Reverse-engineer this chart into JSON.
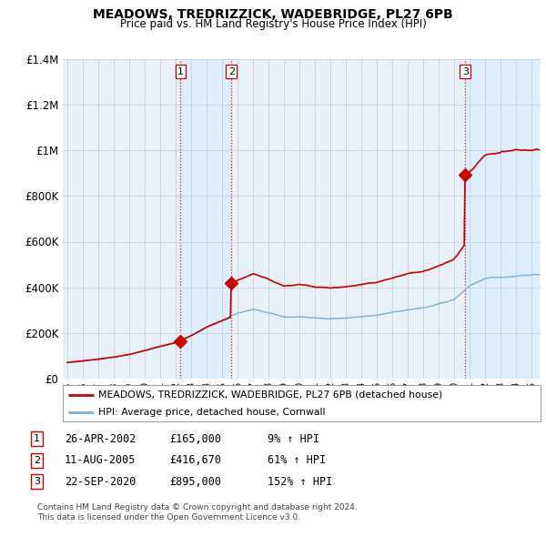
{
  "title": "MEADOWS, TREDRIZZICK, WADEBRIDGE, PL27 6PB",
  "subtitle": "Price paid vs. HM Land Registry's House Price Index (HPI)",
  "ylim": [
    0,
    1400000
  ],
  "yticks": [
    0,
    200000,
    400000,
    600000,
    800000,
    1000000,
    1200000,
    1400000
  ],
  "ytick_labels": [
    "£0",
    "£200K",
    "£400K",
    "£600K",
    "£800K",
    "£1M",
    "£1.2M",
    "£1.4M"
  ],
  "sale_color": "#cc0000",
  "hpi_color": "#7bafd4",
  "transaction_years": [
    2002.32,
    2005.61,
    2020.73
  ],
  "transaction_prices": [
    165000,
    416670,
    895000
  ],
  "transaction_labels": [
    "1",
    "2",
    "3"
  ],
  "vline_color": "#cc0000",
  "shade_color": "#ddeeff",
  "legend_sale_label": "MEADOWS, TREDRIZZICK, WADEBRIDGE, PL27 6PB (detached house)",
  "legend_hpi_label": "HPI: Average price, detached house, Cornwall",
  "table_rows": [
    [
      "1",
      "26-APR-2002",
      "£165,000",
      "9% ↑ HPI"
    ],
    [
      "2",
      "11-AUG-2005",
      "£416,670",
      "61% ↑ HPI"
    ],
    [
      "3",
      "22-SEP-2020",
      "£895,000",
      "152% ↑ HPI"
    ]
  ],
  "footnote": "Contains HM Land Registry data © Crown copyright and database right 2024.\nThis data is licensed under the Open Government Licence v3.0.",
  "bg_color": "#e8f0f8",
  "grid_color": "#c8d0dc",
  "title_fontsize": 10,
  "subtitle_fontsize": 8.5
}
